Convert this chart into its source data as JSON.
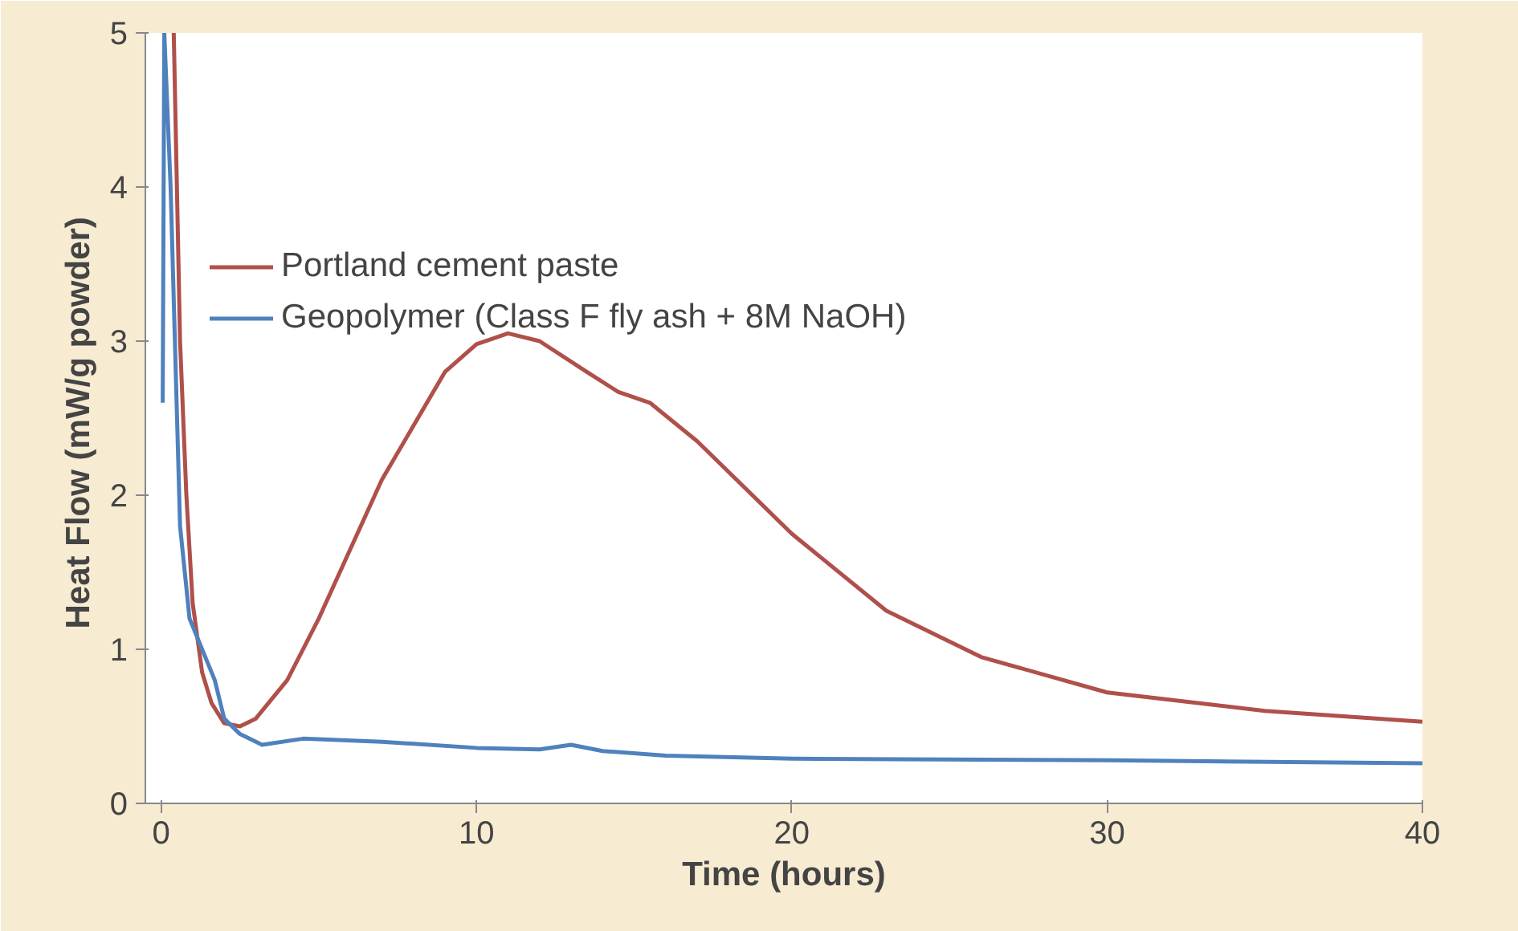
{
  "chart_data": {
    "type": "line",
    "xlabel": "Time (hours)",
    "ylabel": "Heat Flow (mW/g  powder)",
    "xlim": [
      -0.5,
      40
    ],
    "ylim": [
      0,
      5
    ],
    "xticks": [
      0,
      10,
      20,
      30,
      40
    ],
    "yticks": [
      0,
      1,
      2,
      3,
      4,
      5
    ],
    "grid": false,
    "legend": "top left",
    "marker": "none",
    "line_style": "solid",
    "series": [
      {
        "name": "Portland cement paste",
        "color": "#b0504b",
        "x": [
          0.4,
          0.6,
          0.8,
          1.0,
          1.3,
          1.6,
          2,
          2.5,
          3,
          4,
          5,
          7,
          9,
          10,
          11,
          12,
          13.5,
          14.5,
          15.5,
          17,
          20,
          23,
          26,
          30,
          35,
          40
        ],
        "values": [
          5,
          3,
          2,
          1.3,
          0.85,
          0.65,
          0.52,
          0.5,
          0.55,
          0.8,
          1.2,
          2.1,
          2.8,
          2.98,
          3.05,
          3.0,
          2.8,
          2.67,
          2.6,
          2.35,
          1.75,
          1.25,
          0.95,
          0.72,
          0.6,
          0.53
        ]
      },
      {
        "name": "Geopolymer (Class F fly ash + 8M NaOH)",
        "color": "#4f81bd",
        "x": [
          0.05,
          0.1,
          0.3,
          0.6,
          0.9,
          1.4,
          1.7,
          2,
          2.5,
          3.2,
          4.5,
          7,
          10,
          12,
          13,
          14,
          16,
          20,
          30,
          40
        ],
        "values": [
          2.6,
          5,
          4,
          1.8,
          1.2,
          0.95,
          0.8,
          0.55,
          0.45,
          0.38,
          0.42,
          0.4,
          0.36,
          0.35,
          0.38,
          0.34,
          0.31,
          0.29,
          0.28,
          0.26
        ]
      }
    ]
  }
}
